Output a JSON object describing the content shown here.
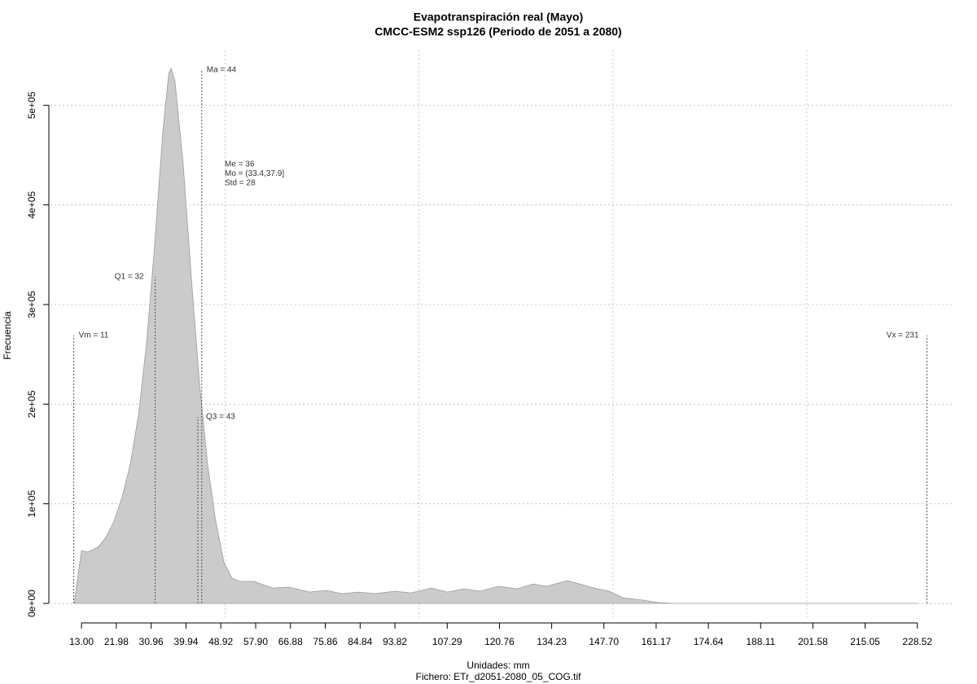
{
  "chart_data": {
    "type": "area",
    "title": "Evapotranspiración real (Mayo)",
    "subtitle": "CMCC-ESM2 ssp126 (Periodo de 2051 a 2080)",
    "x_label": "Unidades: mm",
    "caption": "Fichero: ETr_d2051-2080_05_COG.tif",
    "y_label": "Frecuencia",
    "color": "#cbcbcb",
    "line_color": "#9a9a9a",
    "grid": true,
    "x": [
      11.1,
      13,
      14.7,
      17.2,
      19.3,
      21.4,
      23.5,
      25.6,
      27.7,
      29.8,
      31.9,
      34,
      35.5,
      36.1,
      37.1,
      39.2,
      41.3,
      43.4,
      45.5,
      47.6,
      49.7,
      51.8,
      53.9,
      57.5,
      59.2,
      62.3,
      66.5,
      71.8,
      76,
      80.2,
      84.4,
      88.6,
      93.8,
      98,
      103.2,
      107.4,
      111.6,
      115.8,
      120.5,
      125.3,
      129.5,
      133,
      138.3,
      141.4,
      145.2,
      149,
      152.6,
      157.8,
      162,
      166.2,
      228.7
    ],
    "values": [
      0,
      53000,
      51500,
      56400,
      66200,
      82600,
      107000,
      140000,
      189000,
      262000,
      361000,
      475000,
      532000,
      537000,
      524000,
      442000,
      328000,
      222000,
      140000,
      82600,
      41700,
      25300,
      22100,
      22100,
      19600,
      15500,
      16400,
      11400,
      13100,
      9800,
      11400,
      9800,
      12300,
      10600,
      15500,
      11400,
      14700,
      12300,
      17200,
      14700,
      19600,
      17200,
      22900,
      19600,
      15500,
      12300,
      5700,
      3300,
      800,
      0,
      0
    ],
    "xlim": [
      5,
      237.6
    ],
    "ylim": [
      -15500,
      555000
    ],
    "xticks": [
      {
        "value": 13,
        "label": "13.00"
      },
      21.98,
      30.96,
      39.94,
      48.92,
      {
        "value": 57.9,
        "label": "57.90"
      },
      66.88,
      75.86,
      84.84,
      93.82,
      107.29,
      120.76,
      134.23,
      {
        "value": 147.7,
        "label": "147.70"
      },
      161.17,
      174.64,
      188.11,
      201.58,
      215.05,
      228.52
    ],
    "yticks": [
      {
        "value": 0,
        "label": "0e+00"
      },
      {
        "value": 100000,
        "label": "1e+05"
      },
      {
        "value": 200000,
        "label": "2e+05"
      },
      {
        "value": 300000,
        "label": "3e+05"
      },
      {
        "value": 400000,
        "label": "4e+05"
      },
      {
        "value": 500000,
        "label": "5e+05"
      }
    ],
    "xgrid": [
      50,
      100,
      150,
      200
    ],
    "markers": [
      {
        "label": "Vm = 11",
        "x": 11
      },
      {
        "label": "Q1 = 32",
        "x": 32
      },
      {
        "label": "Ma = 44",
        "x": 44
      },
      {
        "label": "Q3 = 43",
        "x": 43
      },
      {
        "label": "Vx = 231",
        "x": 231
      }
    ],
    "stats_text": [
      "Me = 36",
      "Mo = (33.4,37.9]",
      "Std = 28"
    ]
  }
}
